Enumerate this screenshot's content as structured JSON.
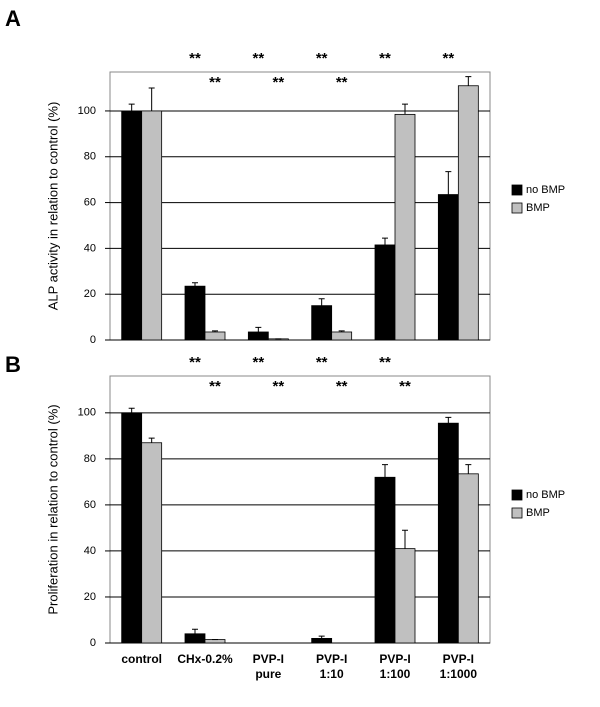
{
  "chart_data": [
    {
      "type": "bar",
      "panel": "A",
      "ylabel": "ALP activity in relation to control (%)",
      "ylim": [
        0,
        117
      ],
      "yticks": [
        0,
        20,
        40,
        60,
        80,
        100
      ],
      "grid": true,
      "legend": "right",
      "series": [
        {
          "name": "no BMP",
          "color": "#000000",
          "values": [
            100,
            23.5,
            3.5,
            15,
            41.5,
            63.5
          ],
          "errors": [
            3,
            1.5,
            2,
            3,
            3,
            10
          ],
          "significance": [
            null,
            "**",
            "**",
            "**",
            "**",
            "**"
          ]
        },
        {
          "name": "BMP",
          "color": "#c0c0c0",
          "values": [
            100,
            3.5,
            0.5,
            3.5,
            98.5,
            111
          ],
          "errors": [
            10,
            0.5,
            0,
            0.5,
            4.5,
            4
          ],
          "significance": [
            null,
            "**",
            "**",
            "**",
            null,
            null
          ]
        }
      ]
    },
    {
      "type": "bar",
      "panel": "B",
      "ylabel": "Proliferation in relation to control (%)",
      "ylim": [
        0,
        116
      ],
      "yticks": [
        0,
        20,
        40,
        60,
        80,
        100
      ],
      "grid": true,
      "legend": "right",
      "categories": [
        [
          "control"
        ],
        [
          "CHx-0.2%"
        ],
        [
          "PVP-I",
          "pure"
        ],
        [
          "PVP-I",
          "1:10"
        ],
        [
          "PVP-I",
          "1:100"
        ],
        [
          "PVP-I",
          "1:1000"
        ]
      ],
      "series": [
        {
          "name": "no BMP",
          "color": "#000000",
          "values": [
            100,
            4,
            0,
            2,
            72,
            95.5
          ],
          "errors": [
            2,
            2,
            0,
            1,
            5.5,
            2.5
          ],
          "significance": [
            null,
            "**",
            "**",
            "**",
            "**",
            null
          ]
        },
        {
          "name": "BMP",
          "color": "#c0c0c0",
          "values": [
            87,
            1.5,
            0,
            0,
            41,
            73.5
          ],
          "errors": [
            2,
            0,
            0,
            0,
            8,
            4
          ],
          "significance": [
            null,
            "**",
            "**",
            "**",
            "**",
            null
          ]
        }
      ]
    }
  ]
}
